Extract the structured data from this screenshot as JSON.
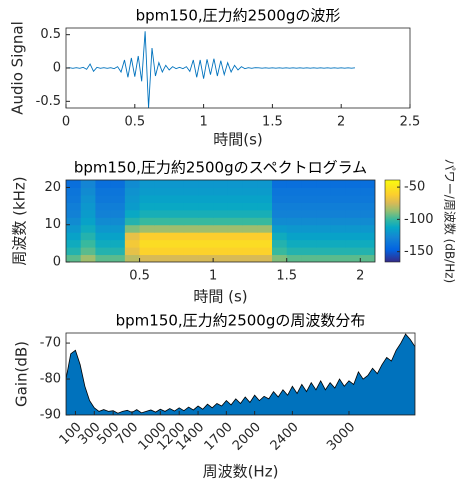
{
  "chart_data": [
    {
      "type": "line",
      "title": "bpm150,圧力約2500gの波形",
      "xlabel": "時間(s)",
      "ylabel": "Audio Signal",
      "color": "#0072bd",
      "x": [
        0,
        0.025,
        0.05,
        0.075,
        0.1,
        0.125,
        0.15,
        0.175,
        0.2,
        0.225,
        0.25,
        0.275,
        0.3,
        0.325,
        0.35,
        0.375,
        0.4,
        0.425,
        0.45,
        0.475,
        0.5,
        0.525,
        0.55,
        0.575,
        0.6,
        0.625,
        0.65,
        0.675,
        0.7,
        0.725,
        0.75,
        0.775,
        0.8,
        0.825,
        0.85,
        0.875,
        0.9,
        0.925,
        0.95,
        0.975,
        1,
        1.025,
        1.05,
        1.075,
        1.1,
        1.125,
        1.15,
        1.175,
        1.2,
        1.225,
        1.25,
        1.275,
        1.3,
        1.325,
        1.35,
        1.375,
        1.4,
        1.425,
        1.45,
        1.475,
        1.5,
        1.525,
        1.55,
        1.575,
        1.6,
        1.625,
        1.65,
        1.675,
        1.7,
        1.725,
        1.75,
        1.775,
        1.8,
        1.825,
        1.85,
        1.875,
        1.9,
        1.925,
        1.95,
        1.975,
        2,
        2.025,
        2.05,
        2.075,
        2.1
      ],
      "values": [
        0,
        0.005,
        -0.005,
        0.005,
        -0.005,
        0.01,
        -0.02,
        0.06,
        -0.05,
        0.01,
        -0.005,
        0.005,
        -0.005,
        0.005,
        -0.01,
        0.02,
        -0.06,
        0.12,
        -0.14,
        0.15,
        -0.13,
        0.18,
        -0.2,
        0.55,
        -0.6,
        0.3,
        -0.12,
        0.08,
        -0.06,
        0.04,
        -0.03,
        0.02,
        -0.01,
        0.01,
        -0.01,
        0.02,
        -0.05,
        0.12,
        -0.14,
        0.12,
        -0.16,
        0.13,
        -0.1,
        0.14,
        -0.12,
        0.11,
        -0.1,
        0.08,
        -0.06,
        0.04,
        -0.03,
        0.02,
        -0.01,
        0.005,
        -0.005,
        0.005,
        0.003,
        -0.003,
        0.003,
        -0.003,
        0.003,
        -0.003,
        0.003,
        -0.003,
        0.003,
        -0.003,
        0.003,
        -0.003,
        0.003,
        -0.003,
        0.003,
        -0.003,
        0.003,
        -0.003,
        0.003,
        -0.003,
        0.003,
        -0.003,
        0.003,
        -0.003,
        0.003,
        -0.003,
        0.003,
        -0.003,
        0.003
      ],
      "xlim": [
        0,
        2.5
      ],
      "ylim": [
        -0.6,
        0.6
      ],
      "xticks": [
        0,
        0.5,
        1,
        1.5,
        2,
        2.5
      ],
      "yticks": [
        -0.5,
        0,
        0.5
      ]
    },
    {
      "type": "heatmap",
      "title": "bpm150,圧力約2500gのスペクトログラム",
      "xlabel": "時間 (s)",
      "ylabel": "周波数 (kHz)",
      "colorbar_label": "パワー/周波数 (dB/Hz)",
      "colormap": "parula",
      "x": [
        0,
        0.1,
        0.2,
        0.3,
        0.4,
        0.5,
        0.6,
        0.7,
        0.8,
        0.9,
        1,
        1.1,
        1.2,
        1.3,
        1.4,
        1.5,
        1.6,
        1.7,
        1.8,
        1.9,
        2,
        2.1
      ],
      "y": [
        0,
        2,
        4,
        6,
        8,
        10,
        12,
        14,
        16,
        18,
        20,
        22
      ],
      "z": [
        [
          -95,
          -85,
          -95,
          -95,
          -80,
          -75,
          -75,
          -75,
          -75,
          -75,
          -75,
          -75,
          -75,
          -75,
          -90,
          -95,
          -95,
          -95,
          -95,
          -95,
          -95
        ],
        [
          -105,
          -95,
          -105,
          -105,
          -70,
          -60,
          -60,
          -60,
          -60,
          -60,
          -60,
          -60,
          -60,
          -60,
          -100,
          -105,
          -105,
          -105,
          -105,
          -105,
          -105
        ],
        [
          -110,
          -100,
          -110,
          -110,
          -65,
          -55,
          -55,
          -55,
          -55,
          -55,
          -55,
          -55,
          -55,
          -55,
          -105,
          -110,
          -110,
          -110,
          -110,
          -110,
          -110
        ],
        [
          -115,
          -105,
          -115,
          -115,
          -70,
          -62,
          -62,
          -62,
          -62,
          -62,
          -62,
          -62,
          -62,
          -62,
          -110,
          -115,
          -115,
          -115,
          -115,
          -115,
          -115
        ],
        [
          -120,
          -110,
          -120,
          -120,
          -90,
          -85,
          -85,
          -85,
          -85,
          -85,
          -85,
          -85,
          -85,
          -85,
          -118,
          -120,
          -120,
          -120,
          -120,
          -120,
          -120
        ],
        [
          -125,
          -115,
          -125,
          -125,
          -105,
          -100,
          -100,
          -100,
          -100,
          -100,
          -100,
          -100,
          -100,
          -100,
          -125,
          -125,
          -125,
          -125,
          -125,
          -125,
          -125
        ],
        [
          -130,
          -118,
          -130,
          -130,
          -112,
          -108,
          -108,
          -108,
          -108,
          -108,
          -108,
          -108,
          -108,
          -108,
          -130,
          -130,
          -130,
          -130,
          -130,
          -130,
          -130
        ],
        [
          -132,
          -120,
          -132,
          -132,
          -118,
          -112,
          -112,
          -112,
          -112,
          -112,
          -112,
          -112,
          -112,
          -112,
          -132,
          -132,
          -132,
          -132,
          -132,
          -132,
          -132
        ],
        [
          -135,
          -122,
          -135,
          -135,
          -120,
          -115,
          -115,
          -115,
          -115,
          -115,
          -115,
          -115,
          -115,
          -115,
          -135,
          -135,
          -135,
          -135,
          -135,
          -135,
          -135
        ],
        [
          -137,
          -125,
          -137,
          -137,
          -122,
          -118,
          -118,
          -118,
          -118,
          -118,
          -118,
          -118,
          -118,
          -118,
          -137,
          -137,
          -137,
          -137,
          -137,
          -137,
          -137
        ],
        [
          -140,
          -128,
          -140,
          -140,
          -125,
          -120,
          -120,
          -120,
          -120,
          -120,
          -120,
          -120,
          -120,
          -120,
          -140,
          -140,
          -140,
          -140,
          -140,
          -140,
          -140
        ]
      ],
      "xlim": [
        0,
        2.1
      ],
      "ylim": [
        0,
        22
      ],
      "xticks": [
        0.5,
        1,
        1.5,
        2
      ],
      "yticks": [
        0,
        10,
        20
      ],
      "clim": [
        -166,
        -39
      ],
      "colorbar_ticks": [
        -50,
        -100,
        -150
      ]
    },
    {
      "type": "area",
      "title": "bpm150,圧力約2500gの周波数分布",
      "xlabel": "周波数(Hz)",
      "ylabel": "Gain(dB)",
      "color": "#0072bd",
      "x": [
        0,
        50,
        100,
        150,
        200,
        250,
        300,
        350,
        400,
        450,
        500,
        550,
        600,
        650,
        700,
        750,
        800,
        850,
        900,
        950,
        1000,
        1050,
        1100,
        1150,
        1200,
        1250,
        1300,
        1350,
        1400,
        1450,
        1500,
        1550,
        1600,
        1650,
        1700,
        1750,
        1800,
        1850,
        1900,
        1950,
        2000,
        2050,
        2100,
        2150,
        2200,
        2250,
        2300,
        2350,
        2400,
        2450,
        2500,
        2550,
        2600,
        2650,
        2700,
        2750,
        2800,
        2850,
        2900,
        2950,
        3000,
        3050,
        3100,
        3150,
        3200,
        3250,
        3300,
        3350,
        3400,
        3450,
        3500,
        3550,
        3600,
        3650,
        3700
      ],
      "values": [
        -80,
        -73,
        -72,
        -76,
        -82,
        -86,
        -88,
        -89,
        -88.5,
        -89,
        -88.8,
        -89.5,
        -89,
        -88.7,
        -89.3,
        -88.5,
        -89.4,
        -89,
        -88.6,
        -89.2,
        -88.4,
        -89,
        -88.2,
        -88.9,
        -88,
        -88.8,
        -87.8,
        -88.6,
        -87.5,
        -88.4,
        -87,
        -88,
        -86.8,
        -87.5,
        -86,
        -87.2,
        -85.5,
        -86.8,
        -85,
        -86.5,
        -84.5,
        -86,
        -84.8,
        -85.5,
        -83.5,
        -85,
        -83,
        -84.5,
        -82,
        -84,
        -81.5,
        -83.5,
        -81,
        -83,
        -80.5,
        -83,
        -81,
        -82.5,
        -80,
        -82,
        -80.5,
        -81.5,
        -78,
        -80,
        -79,
        -77,
        -78.5,
        -76,
        -74,
        -75,
        -72,
        -70,
        -67.5,
        -69,
        -71
      ],
      "xlim": [
        0,
        3700
      ],
      "ylim": [
        -90,
        -67.2
      ],
      "xticks": [
        100,
        300,
        500,
        700,
        1000,
        1200,
        1400,
        1700,
        2000,
        2400,
        3000
      ],
      "yticks": [
        -90,
        -80,
        -70
      ]
    }
  ]
}
